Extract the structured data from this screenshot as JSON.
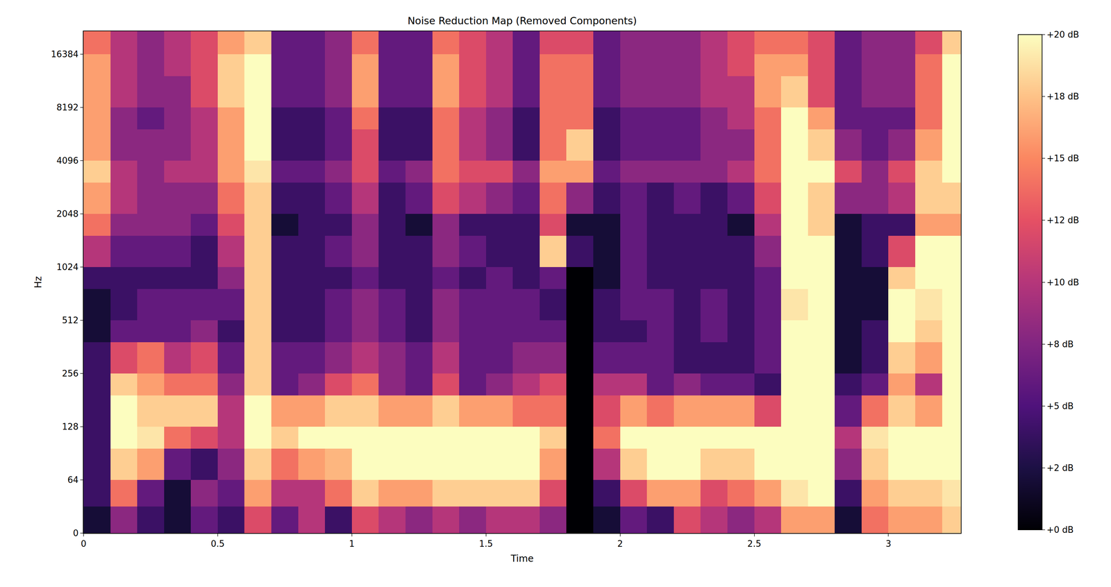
{
  "chart_data": {
    "type": "heatmap",
    "title": "Noise Reduction Map (Removed Components)",
    "x_label": "Time",
    "y_label": "Hz",
    "log": "y",
    "xlim": [
      0,
      3.27
    ],
    "xticks": [
      0,
      0.5,
      1,
      1.5,
      2,
      2.5,
      3
    ],
    "ylim": [
      0,
      22050
    ],
    "yticks": [
      0,
      64,
      128,
      256,
      512,
      1024,
      2048,
      4096,
      8192,
      16384
    ],
    "x": [
      0,
      0.1,
      0.2,
      0.3,
      0.4,
      0.5,
      0.6,
      0.7,
      0.8,
      0.9,
      1.0,
      1.1,
      1.2,
      1.3,
      1.4,
      1.5,
      1.6,
      1.7,
      1.8,
      1.9,
      2.0,
      2.1,
      2.2,
      2.3,
      2.4,
      2.5,
      2.6,
      2.7,
      2.8,
      2.9,
      3.0,
      3.1,
      3.2,
      3.27
    ],
    "y": [
      0,
      32,
      64,
      96,
      128,
      192,
      256,
      384,
      512,
      768,
      1024,
      1536,
      2048,
      3072,
      4096,
      6144,
      8192,
      12288,
      16384,
      22050
    ],
    "cells": [
      [
        2,
        8,
        4,
        2,
        6,
        4,
        12,
        6,
        10,
        4,
        12,
        10,
        8,
        10,
        8,
        10,
        10,
        8,
        0,
        2,
        6,
        4,
        12,
        10,
        8,
        10,
        16,
        16,
        2,
        14,
        16,
        16,
        18
      ],
      [
        4,
        14,
        6,
        2,
        8,
        6,
        16,
        10,
        10,
        14,
        18,
        16,
        16,
        18,
        18,
        18,
        18,
        12,
        0,
        4,
        12,
        16,
        16,
        12,
        14,
        16,
        19,
        20,
        4,
        16,
        18,
        18,
        19
      ],
      [
        4,
        18,
        16,
        6,
        4,
        8,
        18,
        14,
        16,
        17,
        20,
        20,
        20,
        20,
        20,
        20,
        20,
        16,
        0,
        10,
        18,
        20,
        20,
        18,
        18,
        20,
        20,
        20,
        8,
        18,
        20,
        20,
        20
      ],
      [
        4,
        20,
        19,
        14,
        12,
        10,
        20,
        18,
        20,
        20,
        20,
        20,
        20,
        20,
        20,
        20,
        20,
        18,
        0,
        14,
        20,
        20,
        20,
        20,
        20,
        20,
        20,
        20,
        10,
        19,
        20,
        20,
        20
      ],
      [
        4,
        20,
        18,
        18,
        18,
        10,
        20,
        16,
        16,
        18,
        18,
        16,
        16,
        18,
        16,
        16,
        14,
        14,
        0,
        12,
        16,
        14,
        16,
        16,
        16,
        12,
        20,
        20,
        6,
        14,
        18,
        16,
        20
      ],
      [
        4,
        18,
        16,
        14,
        14,
        8,
        18,
        6,
        8,
        12,
        14,
        8,
        6,
        12,
        6,
        8,
        10,
        12,
        0,
        10,
        10,
        6,
        8,
        6,
        6,
        4,
        20,
        20,
        4,
        6,
        16,
        10,
        20
      ],
      [
        4,
        12,
        14,
        10,
        12,
        6,
        18,
        6,
        6,
        8,
        10,
        8,
        6,
        10,
        6,
        6,
        8,
        8,
        0,
        6,
        6,
        6,
        4,
        4,
        4,
        6,
        20,
        20,
        2,
        4,
        18,
        16,
        20
      ],
      [
        2,
        6,
        6,
        6,
        8,
        4,
        18,
        4,
        4,
        6,
        8,
        6,
        4,
        8,
        6,
        6,
        6,
        6,
        0,
        4,
        4,
        6,
        4,
        6,
        4,
        6,
        20,
        20,
        2,
        4,
        20,
        18,
        20
      ],
      [
        2,
        4,
        6,
        6,
        6,
        6,
        18,
        4,
        4,
        6,
        8,
        6,
        4,
        8,
        6,
        6,
        6,
        4,
        0,
        4,
        6,
        6,
        4,
        6,
        4,
        6,
        19,
        20,
        2,
        2,
        20,
        19,
        20
      ],
      [
        4,
        4,
        4,
        4,
        4,
        8,
        18,
        4,
        4,
        4,
        6,
        4,
        4,
        6,
        4,
        6,
        4,
        6,
        0,
        2,
        6,
        4,
        4,
        4,
        4,
        6,
        20,
        20,
        2,
        2,
        18,
        20,
        20
      ],
      [
        10,
        6,
        6,
        6,
        4,
        10,
        18,
        4,
        4,
        6,
        8,
        4,
        4,
        8,
        6,
        4,
        4,
        18,
        4,
        2,
        6,
        4,
        4,
        4,
        4,
        8,
        20,
        20,
        2,
        4,
        12,
        20,
        20
      ],
      [
        14,
        8,
        8,
        8,
        6,
        12,
        18,
        2,
        4,
        4,
        8,
        4,
        2,
        8,
        4,
        4,
        4,
        12,
        2,
        2,
        6,
        4,
        4,
        4,
        2,
        10,
        20,
        18,
        2,
        4,
        4,
        16,
        16
      ],
      [
        16,
        10,
        8,
        8,
        8,
        14,
        18,
        4,
        4,
        6,
        10,
        4,
        6,
        12,
        10,
        8,
        6,
        14,
        8,
        4,
        6,
        4,
        6,
        4,
        6,
        12,
        20,
        18,
        8,
        8,
        10,
        18,
        18
      ],
      [
        18,
        10,
        8,
        10,
        10,
        16,
        19,
        6,
        6,
        8,
        12,
        6,
        8,
        14,
        12,
        12,
        8,
        16,
        16,
        6,
        8,
        8,
        8,
        8,
        10,
        14,
        20,
        20,
        12,
        8,
        12,
        18,
        20
      ],
      [
        16,
        8,
        8,
        8,
        10,
        16,
        20,
        4,
        4,
        6,
        12,
        4,
        4,
        14,
        10,
        8,
        4,
        14,
        18,
        4,
        6,
        6,
        6,
        8,
        8,
        14,
        20,
        18,
        8,
        6,
        8,
        16,
        20
      ],
      [
        16,
        8,
        6,
        8,
        10,
        16,
        20,
        4,
        4,
        6,
        14,
        4,
        4,
        14,
        10,
        8,
        4,
        14,
        14,
        4,
        6,
        6,
        6,
        8,
        10,
        14,
        20,
        16,
        6,
        6,
        6,
        14,
        20
      ],
      [
        16,
        10,
        8,
        8,
        12,
        18,
        20,
        6,
        6,
        8,
        16,
        6,
        6,
        16,
        12,
        10,
        6,
        14,
        14,
        6,
        8,
        8,
        8,
        10,
        10,
        16,
        18,
        12,
        6,
        8,
        8,
        14,
        20
      ],
      [
        16,
        10,
        8,
        10,
        12,
        18,
        20,
        6,
        6,
        8,
        16,
        6,
        6,
        16,
        12,
        10,
        6,
        14,
        14,
        6,
        8,
        8,
        8,
        10,
        12,
        16,
        16,
        12,
        6,
        8,
        8,
        14,
        20
      ],
      [
        14,
        10,
        8,
        10,
        12,
        16,
        18,
        6,
        6,
        8,
        14,
        6,
        6,
        14,
        12,
        10,
        6,
        12,
        12,
        6,
        8,
        8,
        8,
        10,
        12,
        14,
        14,
        12,
        6,
        8,
        8,
        12,
        18
      ]
    ],
    "colorbar": {
      "range": [
        0,
        20
      ],
      "ticks": [
        {
          "value": 0,
          "label": "+0 dB"
        },
        {
          "value": 2.5,
          "label": "+2 dB"
        },
        {
          "value": 5,
          "label": "+5 dB"
        },
        {
          "value": 7.5,
          "label": "+8 dB"
        },
        {
          "value": 10,
          "label": "+10 dB"
        },
        {
          "value": 12.5,
          "label": "+12 dB"
        },
        {
          "value": 15,
          "label": "+15 dB"
        },
        {
          "value": 17.5,
          "label": "+18 dB"
        },
        {
          "value": 20,
          "label": "+20 dB"
        }
      ]
    }
  }
}
